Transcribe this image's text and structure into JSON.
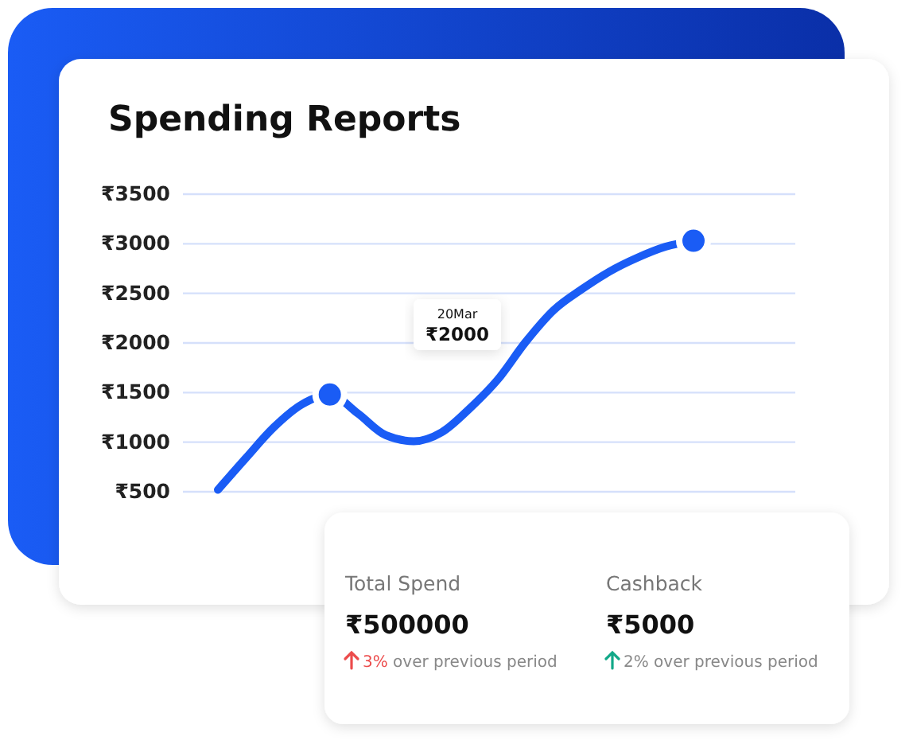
{
  "chart_data": [
    {
      "type": "line",
      "title": "Spending Reports",
      "categories": [
        null,
        null,
        null,
        null,
        null,
        null,
        null,
        null,
        null,
        null,
        null,
        null,
        null,
        null,
        null,
        null,
        null,
        null
      ],
      "series": [
        {
          "type": "line",
          "color": "#1a5cf5",
          "values": [
            520,
            840,
            1150,
            1380,
            1480,
            1290,
            1070,
            1010,
            1100,
            1340,
            1630,
            2010,
            2330,
            2540,
            2720,
            2860,
            2970,
            3030
          ]
        },
        {
          "type": "scatter",
          "color": "#1a5cf5",
          "marker": "circle",
          "values": [
            null,
            null,
            null,
            null,
            1480,
            null,
            null,
            null,
            null,
            null,
            null,
            null,
            null,
            null,
            null,
            null,
            null,
            3030
          ]
        }
      ],
      "ylim": [
        500,
        3500
      ],
      "yticks": [
        {
          "value": 500,
          "label": "₹500"
        },
        {
          "value": 1000,
          "label": "₹1000"
        },
        {
          "value": 1500,
          "label": "₹1500"
        },
        {
          "value": 2000,
          "label": "₹2000"
        },
        {
          "value": 2500,
          "label": "₹2500"
        },
        {
          "value": 3000,
          "label": "₹3000"
        },
        {
          "value": 3500,
          "label": "₹3500"
        }
      ],
      "grid": "y",
      "tick_labels": "y",
      "line_style": "solid",
      "annotations": [
        "20Mar",
        "₹2000"
      ]
    },
    {
      "type": "other",
      "annotations": [
        "Total Spend",
        "₹500000",
        "3%",
        "over previous period",
        "Cashback",
        "₹5000",
        "2%",
        "over previous period"
      ]
    }
  ]
}
